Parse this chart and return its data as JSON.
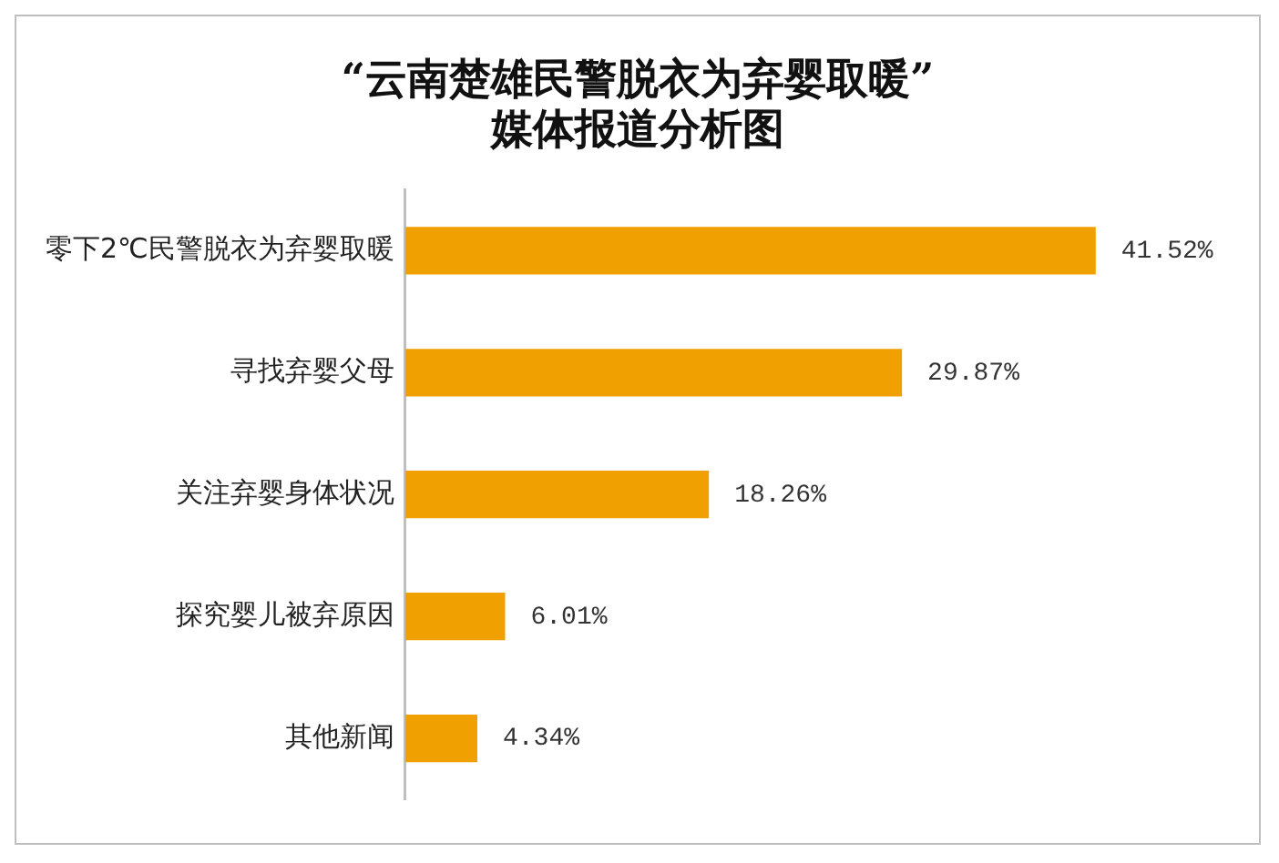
{
  "chart_data": {
    "type": "bar",
    "orientation": "horizontal",
    "title": "“云南楚雄民警脱衣为弃婴取暖”\n媒体报道分析图",
    "categories": [
      "零下2℃民警脱衣为弃婴取暖",
      "寻找弃婴父母",
      "关注弃婴身体状况",
      "探究婴儿被弃原因",
      "其他新闻"
    ],
    "values": [
      41.52,
      29.87,
      18.26,
      6.01,
      4.34
    ],
    "value_labels": [
      "41.52%",
      "29.87%",
      "18.26%",
      "6.01%",
      "4.34%"
    ],
    "color": "#f0a000",
    "tick_labels": "y"
  }
}
